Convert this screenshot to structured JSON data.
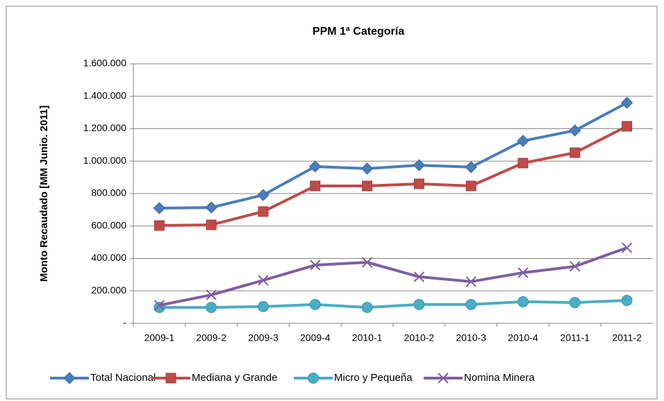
{
  "chart_data": {
    "type": "line",
    "title": "PPM 1ª Categoría",
    "y_label": "Monto Recaudado [MM Junio. 2011]",
    "categories": [
      "2009-1",
      "2009-2",
      "2009-3",
      "2009-4",
      "2010-1",
      "2010-2",
      "2010-3",
      "2010-4",
      "2011-1",
      "2011-2"
    ],
    "series": [
      {
        "name": "Total Nacional",
        "color": "#4a7ebb",
        "marker": "diamond",
        "values": [
          710000,
          714000,
          791000,
          967000,
          954000,
          975000,
          963000,
          1125000,
          1189000,
          1360000
        ]
      },
      {
        "name": "Mediana y Grande",
        "color": "#be4b48",
        "marker": "square",
        "values": [
          603000,
          607000,
          689000,
          847000,
          847000,
          860000,
          847000,
          988000,
          1052000,
          1215000
        ]
      },
      {
        "name": "Micro y Pequeña",
        "color": "#4bacc6",
        "marker": "circle",
        "values": [
          98000,
          98000,
          103000,
          116000,
          98000,
          116000,
          116000,
          133000,
          128000,
          141000
        ]
      },
      {
        "name": "Nomina Minera",
        "color": "#7d5fa0",
        "marker": "x",
        "values": [
          111000,
          175000,
          265000,
          359000,
          376000,
          287000,
          257000,
          312000,
          351000,
          466000
        ]
      }
    ],
    "ylim": [
      0,
      1600000
    ],
    "yticks": [
      {
        "value": 0,
        "label": "-"
      },
      {
        "value": 200000,
        "label": "200.000"
      },
      {
        "value": 400000,
        "label": "400.000"
      },
      {
        "value": 600000,
        "label": "600.000"
      },
      {
        "value": 800000,
        "label": "800.000"
      },
      {
        "value": 1000000,
        "label": "1.000.000"
      },
      {
        "value": 1200000,
        "label": "1.200.000"
      },
      {
        "value": 1400000,
        "label": "1.400.000"
      },
      {
        "value": 1600000,
        "label": "1.600.000"
      }
    ],
    "grid": true,
    "legend": "bottom"
  }
}
